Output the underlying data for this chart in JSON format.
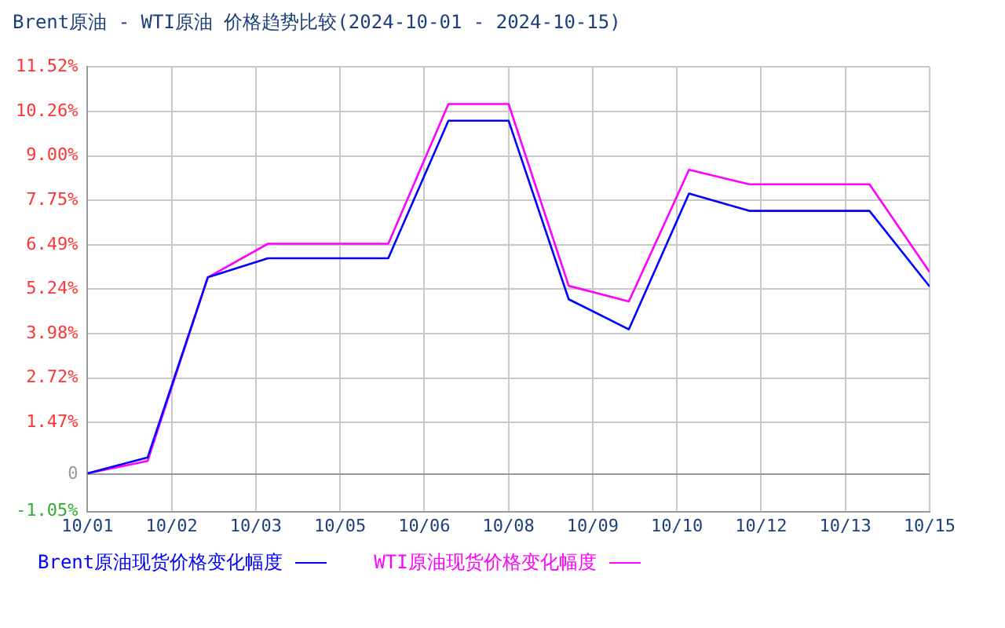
{
  "chart_data": {
    "type": "line",
    "title": "Brent原油 - WTI原油 价格趋势比较(2024-10-01 - 2024-10-15)",
    "x": [
      "2024-10-01",
      "2024-10-02",
      "2024-10-03",
      "2024-10-04",
      "2024-10-05",
      "2024-10-06",
      "2024-10-07",
      "2024-10-08",
      "2024-10-09",
      "2024-10-10",
      "2024-10-11",
      "2024-10-12",
      "2024-10-13",
      "2024-10-14",
      "2024-10-15"
    ],
    "series": [
      {
        "name": "Brent原油现货价格变化幅度",
        "color": "#0000ff",
        "values": [
          0.03,
          0.48,
          5.57,
          6.11,
          6.11,
          6.11,
          10.0,
          10.0,
          4.95,
          4.1,
          7.94,
          7.45,
          7.45,
          7.45,
          5.31
        ]
      },
      {
        "name": "WTI原油现货价格变化幅度",
        "color": "#ff00ff",
        "values": [
          0.03,
          0.38,
          5.57,
          6.52,
          6.52,
          6.52,
          10.47,
          10.47,
          5.33,
          4.89,
          8.61,
          8.2,
          8.2,
          8.2,
          5.72
        ]
      }
    ],
    "xlim": [
      "2024-10-01",
      "2024-10-15"
    ],
    "xticks": [
      {
        "value": "2024-10-01",
        "label": "10/01"
      },
      {
        "value": "2024-10-02T09:36",
        "label": "10/02"
      },
      {
        "value": "2024-10-03T19:12",
        "label": "10/03"
      },
      {
        "value": "2024-10-05T04:48",
        "label": "10/05"
      },
      {
        "value": "2024-10-06T14:24",
        "label": "10/06"
      },
      {
        "value": "2024-10-08",
        "label": "10/08"
      },
      {
        "value": "2024-10-09T09:36",
        "label": "10/09"
      },
      {
        "value": "2024-10-10T19:12",
        "label": "10/10"
      },
      {
        "value": "2024-10-12T04:48",
        "label": "10/12"
      },
      {
        "value": "2024-10-13T14:24",
        "label": "10/13"
      },
      {
        "value": "2024-10-15",
        "label": "10/15"
      }
    ],
    "ylim": [
      -1.05,
      11.52
    ],
    "yticks": [
      {
        "value": -1.05,
        "label": "-1.05%"
      },
      {
        "value": 0,
        "label": "0"
      },
      {
        "value": 1.47,
        "label": "1.47%"
      },
      {
        "value": 2.72,
        "label": "2.72%"
      },
      {
        "value": 3.98,
        "label": "3.98%"
      },
      {
        "value": 5.24,
        "label": "5.24%"
      },
      {
        "value": 6.49,
        "label": "6.49%"
      },
      {
        "value": 7.75,
        "label": "7.75%"
      },
      {
        "value": 9.0,
        "label": "9.00%"
      },
      {
        "value": 10.26,
        "label": "10.26%"
      },
      {
        "value": 11.52,
        "label": "11.52%"
      }
    ],
    "grid": true,
    "legend": "bottom",
    "marker": "none",
    "line_style": "solid"
  }
}
